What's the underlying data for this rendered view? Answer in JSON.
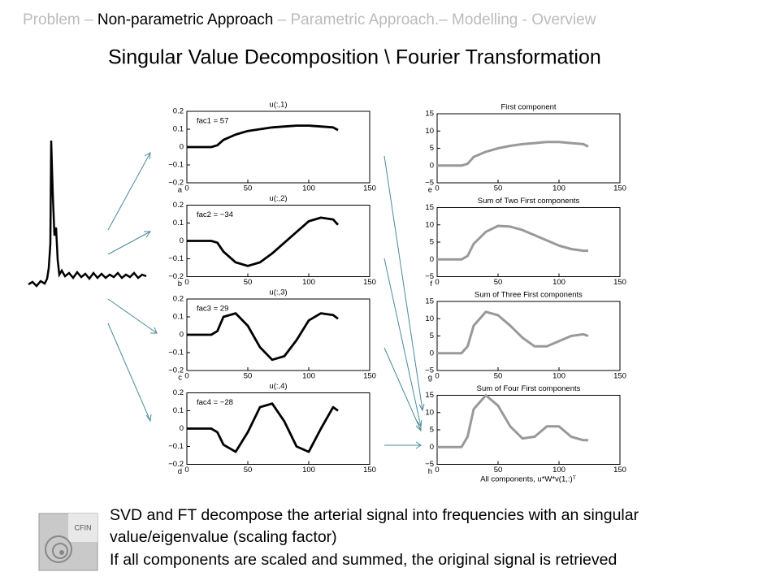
{
  "header": [
    "Problem – ",
    "Non-parametric Approach",
    " – Parametric Approach.– Modelling - Overview"
  ],
  "title": "Singular Value Decomposition \\ Fourier Transformation",
  "left_panels": [
    {
      "title": "u(:,1)",
      "annotation": "fac1 = 57",
      "letter": "a",
      "x": [
        0,
        10,
        20,
        25,
        30,
        40,
        50,
        60,
        70,
        80,
        90,
        100,
        110,
        120,
        124
      ],
      "y": [
        0,
        0,
        0,
        0.01,
        0.04,
        0.07,
        0.09,
        0.1,
        0.11,
        0.115,
        0.12,
        0.12,
        0.115,
        0.11,
        0.095
      ]
    },
    {
      "title": "u(:,2)",
      "annotation": "fac2 = −34",
      "letter": "b",
      "x": [
        0,
        10,
        20,
        25,
        30,
        40,
        50,
        60,
        70,
        80,
        90,
        100,
        110,
        120,
        124
      ],
      "y": [
        0,
        0,
        0,
        -0.01,
        -0.06,
        -0.12,
        -0.14,
        -0.12,
        -0.07,
        -0.01,
        0.05,
        0.11,
        0.13,
        0.12,
        0.09
      ]
    },
    {
      "title": "u(:,3)",
      "annotation": "fac3 = 29",
      "letter": "c",
      "x": [
        0,
        10,
        20,
        25,
        30,
        40,
        50,
        60,
        70,
        80,
        90,
        100,
        110,
        120,
        124
      ],
      "y": [
        0,
        0,
        0,
        0.02,
        0.1,
        0.12,
        0.05,
        -0.07,
        -0.14,
        -0.12,
        -0.03,
        0.08,
        0.12,
        0.11,
        0.09
      ]
    },
    {
      "title": "u(:,4)",
      "annotation": "fac4 = −28",
      "letter": "d",
      "x": [
        0,
        10,
        20,
        25,
        30,
        40,
        50,
        60,
        70,
        80,
        90,
        100,
        110,
        120,
        124
      ],
      "y": [
        0,
        0,
        0,
        -0.02,
        -0.09,
        -0.13,
        -0.02,
        0.12,
        0.14,
        0.04,
        -0.1,
        -0.13,
        0.0,
        0.12,
        0.1
      ]
    }
  ],
  "left_axes": {
    "xlim": [
      0,
      150
    ],
    "xticks": [
      0,
      50,
      100,
      150
    ],
    "ylim": [
      -0.2,
      0.2
    ],
    "yticks": [
      0.2,
      0.1,
      0,
      {
        "value": -0.1,
        "label": "−0.1"
      },
      {
        "value": -0.2,
        "label": "−0.2"
      }
    ]
  },
  "right_panels": [
    {
      "title": "First component",
      "letter": "e",
      "x": [
        0,
        10,
        20,
        25,
        30,
        40,
        50,
        60,
        70,
        80,
        90,
        100,
        110,
        120,
        124
      ],
      "y": [
        0,
        0,
        0,
        0.5,
        2.5,
        4,
        5,
        5.7,
        6.2,
        6.5,
        6.8,
        6.8,
        6.5,
        6.2,
        5.5
      ]
    },
    {
      "title": "Sum of Two First components",
      "letter": "f",
      "x": [
        0,
        10,
        20,
        25,
        30,
        40,
        50,
        60,
        70,
        80,
        90,
        100,
        110,
        120,
        124
      ],
      "y": [
        0,
        0,
        0,
        1,
        4.5,
        8,
        9.7,
        9.5,
        8.5,
        7,
        5.5,
        4,
        3,
        2.5,
        2.5
      ]
    },
    {
      "title": "Sum of Three First components",
      "letter": "g",
      "x": [
        0,
        10,
        20,
        25,
        30,
        40,
        50,
        60,
        70,
        80,
        90,
        100,
        110,
        120,
        124
      ],
      "y": [
        0,
        0,
        0,
        2,
        8,
        12,
        11,
        8,
        4.5,
        2,
        2,
        3.5,
        5,
        5.5,
        5
      ]
    },
    {
      "title": "Sum of Four First components",
      "letter": "h",
      "x": [
        0,
        10,
        20,
        25,
        30,
        40,
        50,
        60,
        70,
        80,
        90,
        100,
        110,
        120,
        124
      ],
      "y": [
        0,
        0,
        0,
        3,
        11,
        15,
        12,
        6,
        2.5,
        3,
        6,
        6,
        3,
        2,
        2
      ]
    }
  ],
  "right_axes": {
    "xlim": [
      0,
      150
    ],
    "xticks": [
      0,
      50,
      100,
      150
    ],
    "ylim": [
      -5,
      15
    ],
    "yticks": [
      15,
      10,
      5,
      0,
      {
        "value": -5,
        "label": "−5"
      }
    ]
  },
  "caption": "All components, u*W*v(1,:)ᵀ",
  "logo_text": "CFIN",
  "body": [
    "SVD and FT decompose the arterial signal into frequencies with an singular",
    "value/eigenvalue (scaling factor)",
    "If all components are scaled and summed, the original signal is retrieved"
  ]
}
